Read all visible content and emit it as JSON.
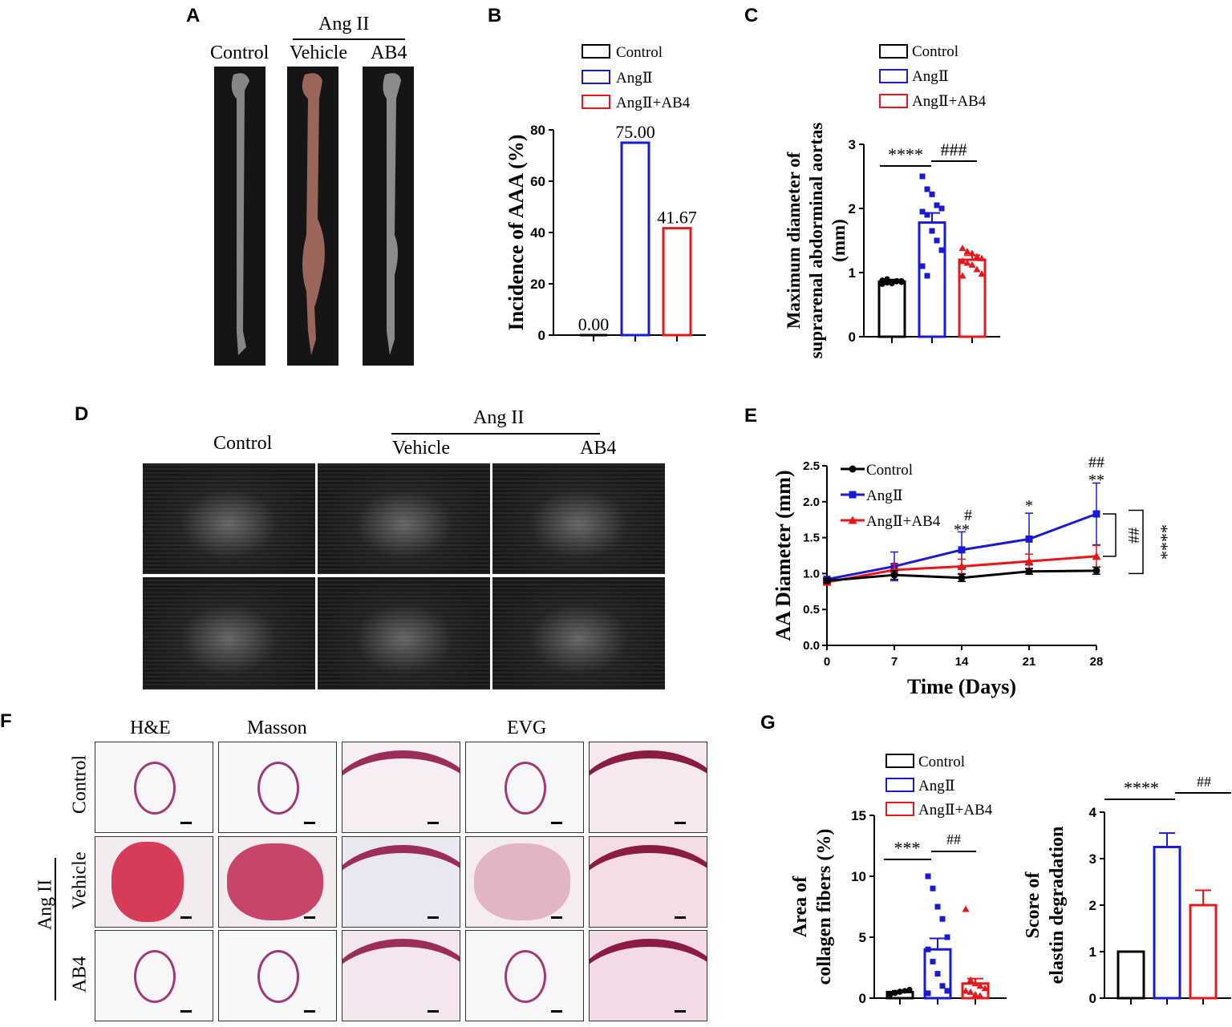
{
  "panels": {
    "A": {
      "letter": "A",
      "group_label": "Ang II",
      "columns": [
        "Control",
        "Vehicle",
        "AB4"
      ]
    },
    "B": {
      "letter": "B",
      "legend": [
        "Control",
        "AngⅡ",
        "AngⅡ+AB4"
      ]
    },
    "C": {
      "letter": "C",
      "legend": [
        "Control",
        "AngⅡ",
        "AngⅡ+AB4"
      ],
      "sig_left": "****",
      "sig_right": "###"
    },
    "D": {
      "letter": "D",
      "group_label": "Ang II",
      "columns": [
        "Control",
        "Vehicle",
        "AB4"
      ]
    },
    "E": {
      "letter": "E",
      "legend": [
        "Control",
        "AngⅡ",
        "AngⅡ+AB4"
      ],
      "annotations": {
        "d14_hash": "#",
        "d14_star": "**",
        "d21_star": "*",
        "d28_hash": "##",
        "d28_star": "**",
        "bracket_hash": "##",
        "bracket_star": "****"
      }
    },
    "F": {
      "letter": "F",
      "columns": [
        "H&E",
        "Masson",
        "EVG"
      ],
      "rows": [
        "Control",
        "Vehicle",
        "AB4"
      ],
      "group_label": "Ang II"
    },
    "G": {
      "letter": "G",
      "legend": [
        "Control",
        "AngⅡ",
        "AngⅡ+AB4"
      ],
      "left_sig": [
        "***",
        "##"
      ],
      "right_sig": [
        "****",
        "##"
      ]
    }
  },
  "colors": {
    "control": "#000000",
    "angii": "#1a1ad6",
    "ab4": "#e8171b"
  },
  "chart_data": [
    {
      "id": "B",
      "type": "bar",
      "categories": [
        "Control",
        "AngⅡ",
        "AngⅡ+AB4"
      ],
      "values": [
        0.0,
        75.0,
        41.67
      ],
      "data_labels": [
        "0.00",
        "75.00",
        "41.67"
      ],
      "ylabel": "Incidence of AAA (%)",
      "ylim": [
        0,
        80
      ],
      "yticks": [
        0,
        20,
        40,
        60,
        80
      ]
    },
    {
      "id": "C",
      "type": "bar",
      "categories": [
        "Control",
        "AngⅡ",
        "AngⅡ+AB4"
      ],
      "values": [
        0.86,
        1.78,
        1.2
      ],
      "errors": [
        0.03,
        0.15,
        0.07
      ],
      "points": [
        [
          0.82,
          0.84,
          0.85,
          0.86,
          0.87,
          0.88,
          0.9,
          0.83,
          0.87,
          0.85
        ],
        [
          2.5,
          2.3,
          2.22,
          2.05,
          2.0,
          1.95,
          1.9,
          1.65,
          1.5,
          1.35,
          1.1,
          0.95
        ],
        [
          1.38,
          1.33,
          1.3,
          1.25,
          1.22,
          1.18,
          1.15,
          1.12,
          1.05,
          0.98,
          0.95
        ]
      ],
      "ylabel": "Maximum diameter of suprarenal abdorminal aortas (mm)",
      "ylim": [
        0,
        3
      ],
      "yticks": [
        0,
        1,
        2,
        3
      ]
    },
    {
      "id": "E",
      "type": "line",
      "x": [
        0,
        7,
        14,
        21,
        28
      ],
      "series": [
        {
          "name": "Control",
          "values": [
            0.9,
            0.98,
            0.94,
            1.03,
            1.04
          ],
          "errors": [
            0.03,
            0.06,
            0.05,
            0.04,
            0.05
          ]
        },
        {
          "name": "AngⅡ",
          "values": [
            0.92,
            1.1,
            1.33,
            1.48,
            1.83
          ],
          "errors": [
            0.02,
            0.2,
            0.25,
            0.36,
            0.43
          ]
        },
        {
          "name": "AngⅡ+AB4",
          "values": [
            0.88,
            1.05,
            1.1,
            1.17,
            1.24
          ],
          "errors": [
            0.03,
            0.08,
            0.1,
            0.1,
            0.15
          ]
        }
      ],
      "xlabel": "Time (Days)",
      "ylabel": "AA Diameter (mm)",
      "xticks": [
        0,
        7,
        14,
        21,
        28
      ],
      "ylim": [
        0,
        2.5
      ],
      "yticks": [
        0.0,
        0.5,
        1.0,
        1.5,
        2.0,
        2.5
      ]
    },
    {
      "id": "G-left",
      "type": "bar",
      "categories": [
        "Control",
        "AngⅡ",
        "AngⅡ+AB4"
      ],
      "values": [
        0.5,
        4.0,
        1.2
      ],
      "errors": [
        0.1,
        0.9,
        0.4
      ],
      "points": [
        [
          0.3,
          0.4,
          0.5,
          0.6,
          0.7,
          0.35,
          0.45,
          0.55
        ],
        [
          10.0,
          9.0,
          7.5,
          6.5,
          5.0,
          4.0,
          3.0,
          2.0,
          1.0,
          0.6,
          0.4
        ],
        [
          7.3,
          1.5,
          1.2,
          1.0,
          0.8,
          0.6,
          0.5,
          0.3,
          0.2
        ]
      ],
      "ylabel": "Area of collagen fibers (%)",
      "ylim": [
        0,
        15
      ],
      "yticks": [
        0,
        5,
        10,
        15
      ]
    },
    {
      "id": "G-right",
      "type": "bar",
      "categories": [
        "Control",
        "AngⅡ",
        "AngⅡ+AB4"
      ],
      "values": [
        1.0,
        3.25,
        2.0
      ],
      "errors": [
        0,
        0.3,
        0.32
      ],
      "ylabel": "Score of elastin degradation",
      "ylim": [
        0,
        4
      ],
      "yticks": [
        0,
        1,
        2,
        3,
        4
      ]
    }
  ]
}
